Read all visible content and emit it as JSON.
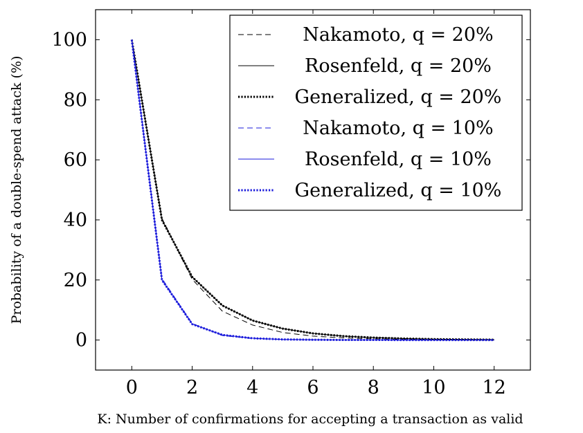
{
  "chart_data": {
    "type": "line",
    "xlabel": "K: Number of confirmations for accepting a transaction as valid",
    "ylabel": "Probability of a double-spend attack (%)",
    "xlim": [
      -1.2,
      13.2
    ],
    "ylim": [
      -10,
      110
    ],
    "xticks": [
      "0",
      "2",
      "4",
      "6",
      "8",
      "10",
      "12"
    ],
    "yticks": [
      "0",
      "20",
      "40",
      "60",
      "80",
      "100"
    ],
    "grid": false,
    "legend_position": "top-right",
    "x": [
      0,
      1,
      2,
      3,
      4,
      5,
      6,
      7,
      8,
      9,
      10,
      11,
      12
    ],
    "series": [
      {
        "name": "Nakamoto, q = 20%",
        "color": "#000000",
        "style": "dashed",
        "values": [
          100,
          40.5,
          20.2,
          9.6,
          5.0,
          2.5,
          1.3,
          0.7,
          0.4,
          0.2,
          0.1,
          0.05,
          0.03
        ]
      },
      {
        "name": "Rosenfeld, q = 20%",
        "color": "#000000",
        "style": "solid",
        "values": [
          100,
          40,
          21,
          11.5,
          6.5,
          3.8,
          2.2,
          1.3,
          0.8,
          0.5,
          0.3,
          0.2,
          0.1
        ]
      },
      {
        "name": "Generalized, q = 20%",
        "color": "#000000",
        "style": "dotted",
        "values": [
          100,
          40,
          21,
          11.5,
          6.5,
          3.8,
          2.2,
          1.3,
          0.8,
          0.5,
          0.3,
          0.2,
          0.1
        ]
      },
      {
        "name": "Nakamoto, q = 10%",
        "color": "#1a1adb",
        "style": "dashed",
        "values": [
          100,
          20.5,
          5.5,
          1.5,
          0.5,
          0.15,
          0.05,
          0.02,
          0.01,
          0,
          0,
          0,
          0
        ]
      },
      {
        "name": "Rosenfeld, q = 10%",
        "color": "#1a1adb",
        "style": "solid",
        "values": [
          100,
          20,
          5.3,
          1.7,
          0.6,
          0.2,
          0.08,
          0.03,
          0.01,
          0,
          0,
          0,
          0
        ]
      },
      {
        "name": "Generalized, q = 10%",
        "color": "#1a1adb",
        "style": "dotted",
        "values": [
          100,
          20,
          5.3,
          1.7,
          0.6,
          0.2,
          0.08,
          0.03,
          0.01,
          0,
          0,
          0,
          0
        ]
      }
    ]
  }
}
